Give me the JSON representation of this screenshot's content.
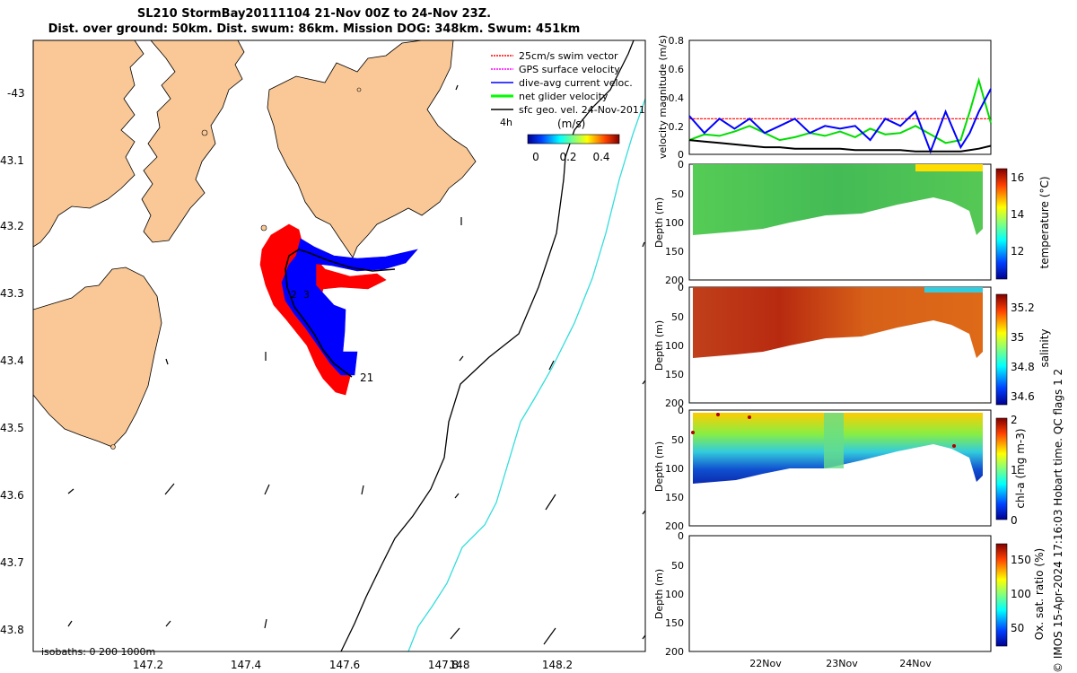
{
  "title_line1": "SL210 StormBay20111104 21-Nov 00Z to 24-Nov 23Z.",
  "title_line2": "Dist. over ground: 50km. Dist. swum: 86km. Mission DOG: 348km. Swum: 451km",
  "map": {
    "x_ticks": [
      "147.2",
      "147.4",
      "147.6",
      "147.8",
      "148",
      "148.2"
    ],
    "y_ticks": [
      "-43",
      "43.1",
      "43.2",
      "43.3",
      "43.4",
      "43.5",
      "43.6",
      "43.7",
      "43.8"
    ],
    "legend": [
      {
        "label": "25cm/s swim vector",
        "color": "#ff0000"
      },
      {
        "label": "GPS surface velocity",
        "color": "#ff00ff"
      },
      {
        "label": "dive-avg current veloc.",
        "color": "#0000ff"
      },
      {
        "label": "net glider velocity",
        "color": "#00ff00"
      },
      {
        "label": "sfc geo. vel. 24-Nov-2011",
        "color": "#000000"
      }
    ],
    "scale_label": "4h",
    "colorbar_label": "(m/s)",
    "colorbar_ticks": [
      "0",
      "0.2",
      "0.4"
    ],
    "isobath_label": "isobaths: 0   200  1000m",
    "track_label_2": "2",
    "track_label_3": "3",
    "track_label_21": "21",
    "colors": {
      "land": "#f9c896",
      "sea": "#ffffff",
      "isobath_200": "#000000",
      "isobath_1000": "#33dddd"
    }
  },
  "chart_data": [
    {
      "type": "line",
      "title": "",
      "ylabel": "velocity magnitude (m/s)",
      "ylim": [
        0,
        0.8
      ],
      "y_ticks": [
        "0",
        "0.2",
        "0.4",
        "0.6",
        "0.8"
      ],
      "x": [
        0,
        0.05,
        0.1,
        0.15,
        0.2,
        0.25,
        0.3,
        0.35,
        0.4,
        0.45,
        0.5,
        0.55,
        0.6,
        0.65,
        0.7,
        0.75,
        0.8,
        0.85,
        0.9,
        0.93,
        0.96,
        1.0
      ],
      "series": [
        {
          "name": "swim vector",
          "color": "#ff0000",
          "values": [
            0.25,
            0.25,
            0.25,
            0.25,
            0.25,
            0.25,
            0.25,
            0.25,
            0.25,
            0.25,
            0.25,
            0.25,
            0.25,
            0.25,
            0.25,
            0.25,
            0.25,
            0.25,
            0.25,
            0.25,
            0.25,
            0.25
          ]
        },
        {
          "name": "net glider velocity",
          "color": "#00dd00",
          "values": [
            0.1,
            0.14,
            0.13,
            0.16,
            0.2,
            0.15,
            0.1,
            0.12,
            0.15,
            0.13,
            0.16,
            0.12,
            0.18,
            0.14,
            0.15,
            0.2,
            0.14,
            0.08,
            0.1,
            0.3,
            0.52,
            0.22
          ]
        },
        {
          "name": "dive-avg current",
          "color": "#0000ff",
          "values": [
            0.27,
            0.15,
            0.25,
            0.18,
            0.25,
            0.15,
            0.2,
            0.25,
            0.15,
            0.2,
            0.18,
            0.2,
            0.1,
            0.25,
            0.2,
            0.3,
            0.02,
            0.3,
            0.05,
            0.15,
            0.3,
            0.46
          ]
        },
        {
          "name": "geo vel",
          "color": "#000000",
          "values": [
            0.1,
            0.09,
            0.08,
            0.07,
            0.06,
            0.05,
            0.05,
            0.04,
            0.04,
            0.04,
            0.04,
            0.03,
            0.03,
            0.03,
            0.03,
            0.02,
            0.02,
            0.02,
            0.02,
            0.03,
            0.04,
            0.06
          ]
        }
      ]
    },
    {
      "type": "heatmap",
      "ylabel": "Depth (m)",
      "ylim": [
        0,
        200
      ],
      "y_ticks": [
        "0",
        "50",
        "100",
        "150",
        "200"
      ],
      "colorbar_label": "temperature (°C)",
      "colorbar_ticks": [
        "12",
        "14",
        "16"
      ],
      "color_range": [
        11,
        16.5
      ]
    },
    {
      "type": "heatmap",
      "ylabel": "Depth (m)",
      "ylim": [
        0,
        200
      ],
      "y_ticks": [
        "0",
        "50",
        "100",
        "150",
        "200"
      ],
      "colorbar_label": "salinity",
      "colorbar_ticks": [
        "34.6",
        "34.8",
        "35",
        "35.2"
      ],
      "color_range": [
        34.55,
        35.3
      ]
    },
    {
      "type": "heatmap",
      "ylabel": "Depth (m)",
      "ylim": [
        0,
        200
      ],
      "y_ticks": [
        "0",
        "50",
        "100",
        "150",
        "200"
      ],
      "colorbar_label": "chl-a (mg m-3)",
      "colorbar_ticks": [
        "0",
        "1",
        "2"
      ],
      "color_range": [
        0,
        2
      ]
    },
    {
      "type": "heatmap",
      "ylabel": "Depth (m)",
      "ylim": [
        0,
        200
      ],
      "y_ticks": [
        "0",
        "50",
        "100",
        "150",
        "200"
      ],
      "colorbar_label": "Ox. sat. ratio (%)",
      "colorbar_ticks": [
        "50",
        "100",
        "150"
      ],
      "color_range": [
        20,
        175
      ]
    }
  ],
  "time_axis": {
    "labels": [
      "22Nov",
      "23Nov",
      "24Nov"
    ]
  },
  "footer_text": "© IMOS 15-Apr-2024 17:16:03 Hobart time. QC flags 1  2"
}
